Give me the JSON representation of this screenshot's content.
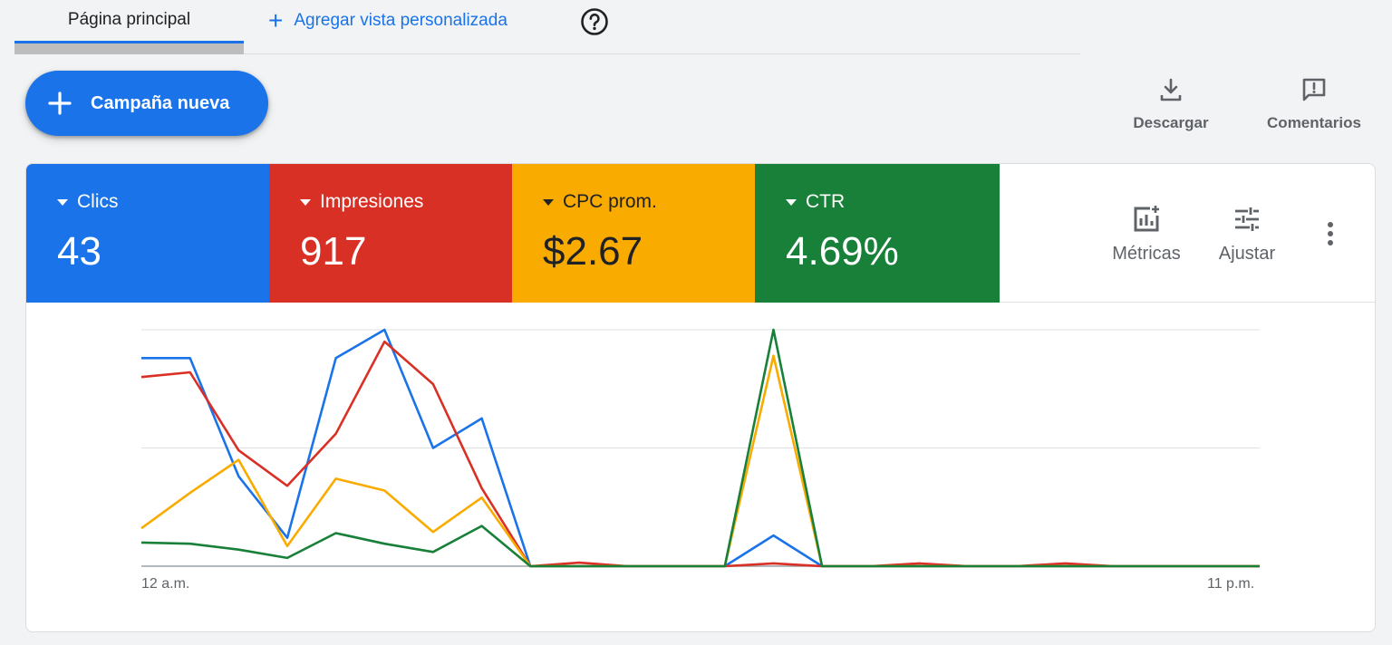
{
  "tabs": {
    "home_label": "Página principal",
    "add_view_label": "Agregar vista personalizada"
  },
  "new_campaign": {
    "label": "Campaña nueva"
  },
  "actions": {
    "download_label": "Descargar",
    "comments_label": "Comentarios"
  },
  "metrics": [
    {
      "label": "Clics",
      "value": "43",
      "color": "#1a73e8"
    },
    {
      "label": "Impresiones",
      "value": "917",
      "color": "#d93025"
    },
    {
      "label": "CPC prom.",
      "value": "$2.67",
      "color": "#f9ab00"
    },
    {
      "label": "CTR",
      "value": "4.69%",
      "color": "#188038"
    }
  ],
  "tools": {
    "metrics_label": "Métricas",
    "adjust_label": "Ajustar"
  },
  "chart_data": {
    "type": "line",
    "x_tick_labels": [
      "12 a.m.",
      "11 p.m."
    ],
    "x": [
      0,
      1,
      2,
      3,
      4,
      5,
      6,
      7,
      8,
      9,
      10,
      11,
      12,
      13,
      14,
      15,
      16,
      17,
      18,
      19,
      20,
      21,
      22,
      23
    ],
    "ylim": [
      0,
      1
    ],
    "grid": true,
    "series": [
      {
        "color": "#1a73e8",
        "values": [
          0.88,
          0.88,
          0.38,
          0.12,
          0.88,
          1.0,
          0.5,
          0.625,
          0,
          0,
          0,
          0,
          0,
          0.13,
          0,
          0,
          0,
          0,
          0,
          0,
          0,
          0,
          0,
          0
        ]
      },
      {
        "color": "#d93025",
        "values": [
          0.8,
          0.82,
          0.49,
          0.34,
          0.56,
          0.95,
          0.77,
          0.33,
          0,
          0.015,
          0,
          0,
          0,
          0.012,
          0,
          0,
          0.012,
          0,
          0,
          0.012,
          0,
          0,
          0,
          0
        ]
      },
      {
        "color": "#f9ab00",
        "values": [
          0.16,
          0.31,
          0.45,
          0.085,
          0.37,
          0.32,
          0.145,
          0.29,
          0,
          0,
          0,
          0,
          0,
          0.89,
          0,
          0,
          0,
          0,
          0,
          0,
          0,
          0,
          0,
          0
        ]
      },
      {
        "color": "#188038",
        "values": [
          0.1,
          0.095,
          0.07,
          0.035,
          0.14,
          0.095,
          0.06,
          0.17,
          0,
          0,
          0,
          0,
          0,
          1.0,
          0,
          0,
          0,
          0,
          0,
          0,
          0,
          0,
          0,
          0
        ]
      }
    ]
  }
}
